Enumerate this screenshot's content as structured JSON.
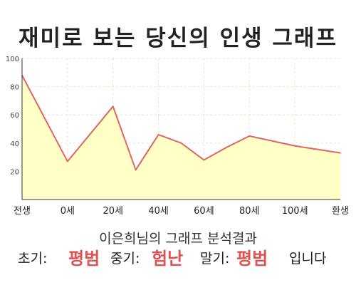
{
  "title": "재미로 보는 당신의 인생 그래프",
  "analysis": {
    "heading": "이은희님의 그래프 분석결과",
    "early_label": "초기:",
    "early_value": "평범",
    "mid_label": "중기:",
    "mid_value": "험난",
    "late_label": "말기:",
    "late_value": "평범",
    "ending": "입니다"
  },
  "colors": {
    "line": "#e06666",
    "fill": "#ffffc6",
    "grid": "#e6e6cc",
    "accent": "#e05252"
  },
  "chart_data": {
    "type": "area",
    "title": "",
    "xlabel": "",
    "ylabel": "",
    "ylim": [
      0,
      100
    ],
    "grid": true,
    "yticks": [
      20,
      40,
      60,
      80,
      100
    ],
    "x_labels": [
      "전생",
      "0세",
      "20세",
      "40세",
      "60세",
      "80세",
      "100세",
      "환생"
    ],
    "points": [
      {
        "x": "전생",
        "y": 88
      },
      {
        "x": "0세",
        "y": 27
      },
      {
        "x": "20세",
        "y": 66
      },
      {
        "x": "30세",
        "y": 21
      },
      {
        "x": "40세",
        "y": 46
      },
      {
        "x": "50세",
        "y": 40
      },
      {
        "x": "60세",
        "y": 28
      },
      {
        "x": "70세",
        "y": 37
      },
      {
        "x": "80세",
        "y": 45
      },
      {
        "x": "100세",
        "y": 38
      },
      {
        "x": "환생",
        "y": 33
      }
    ]
  }
}
